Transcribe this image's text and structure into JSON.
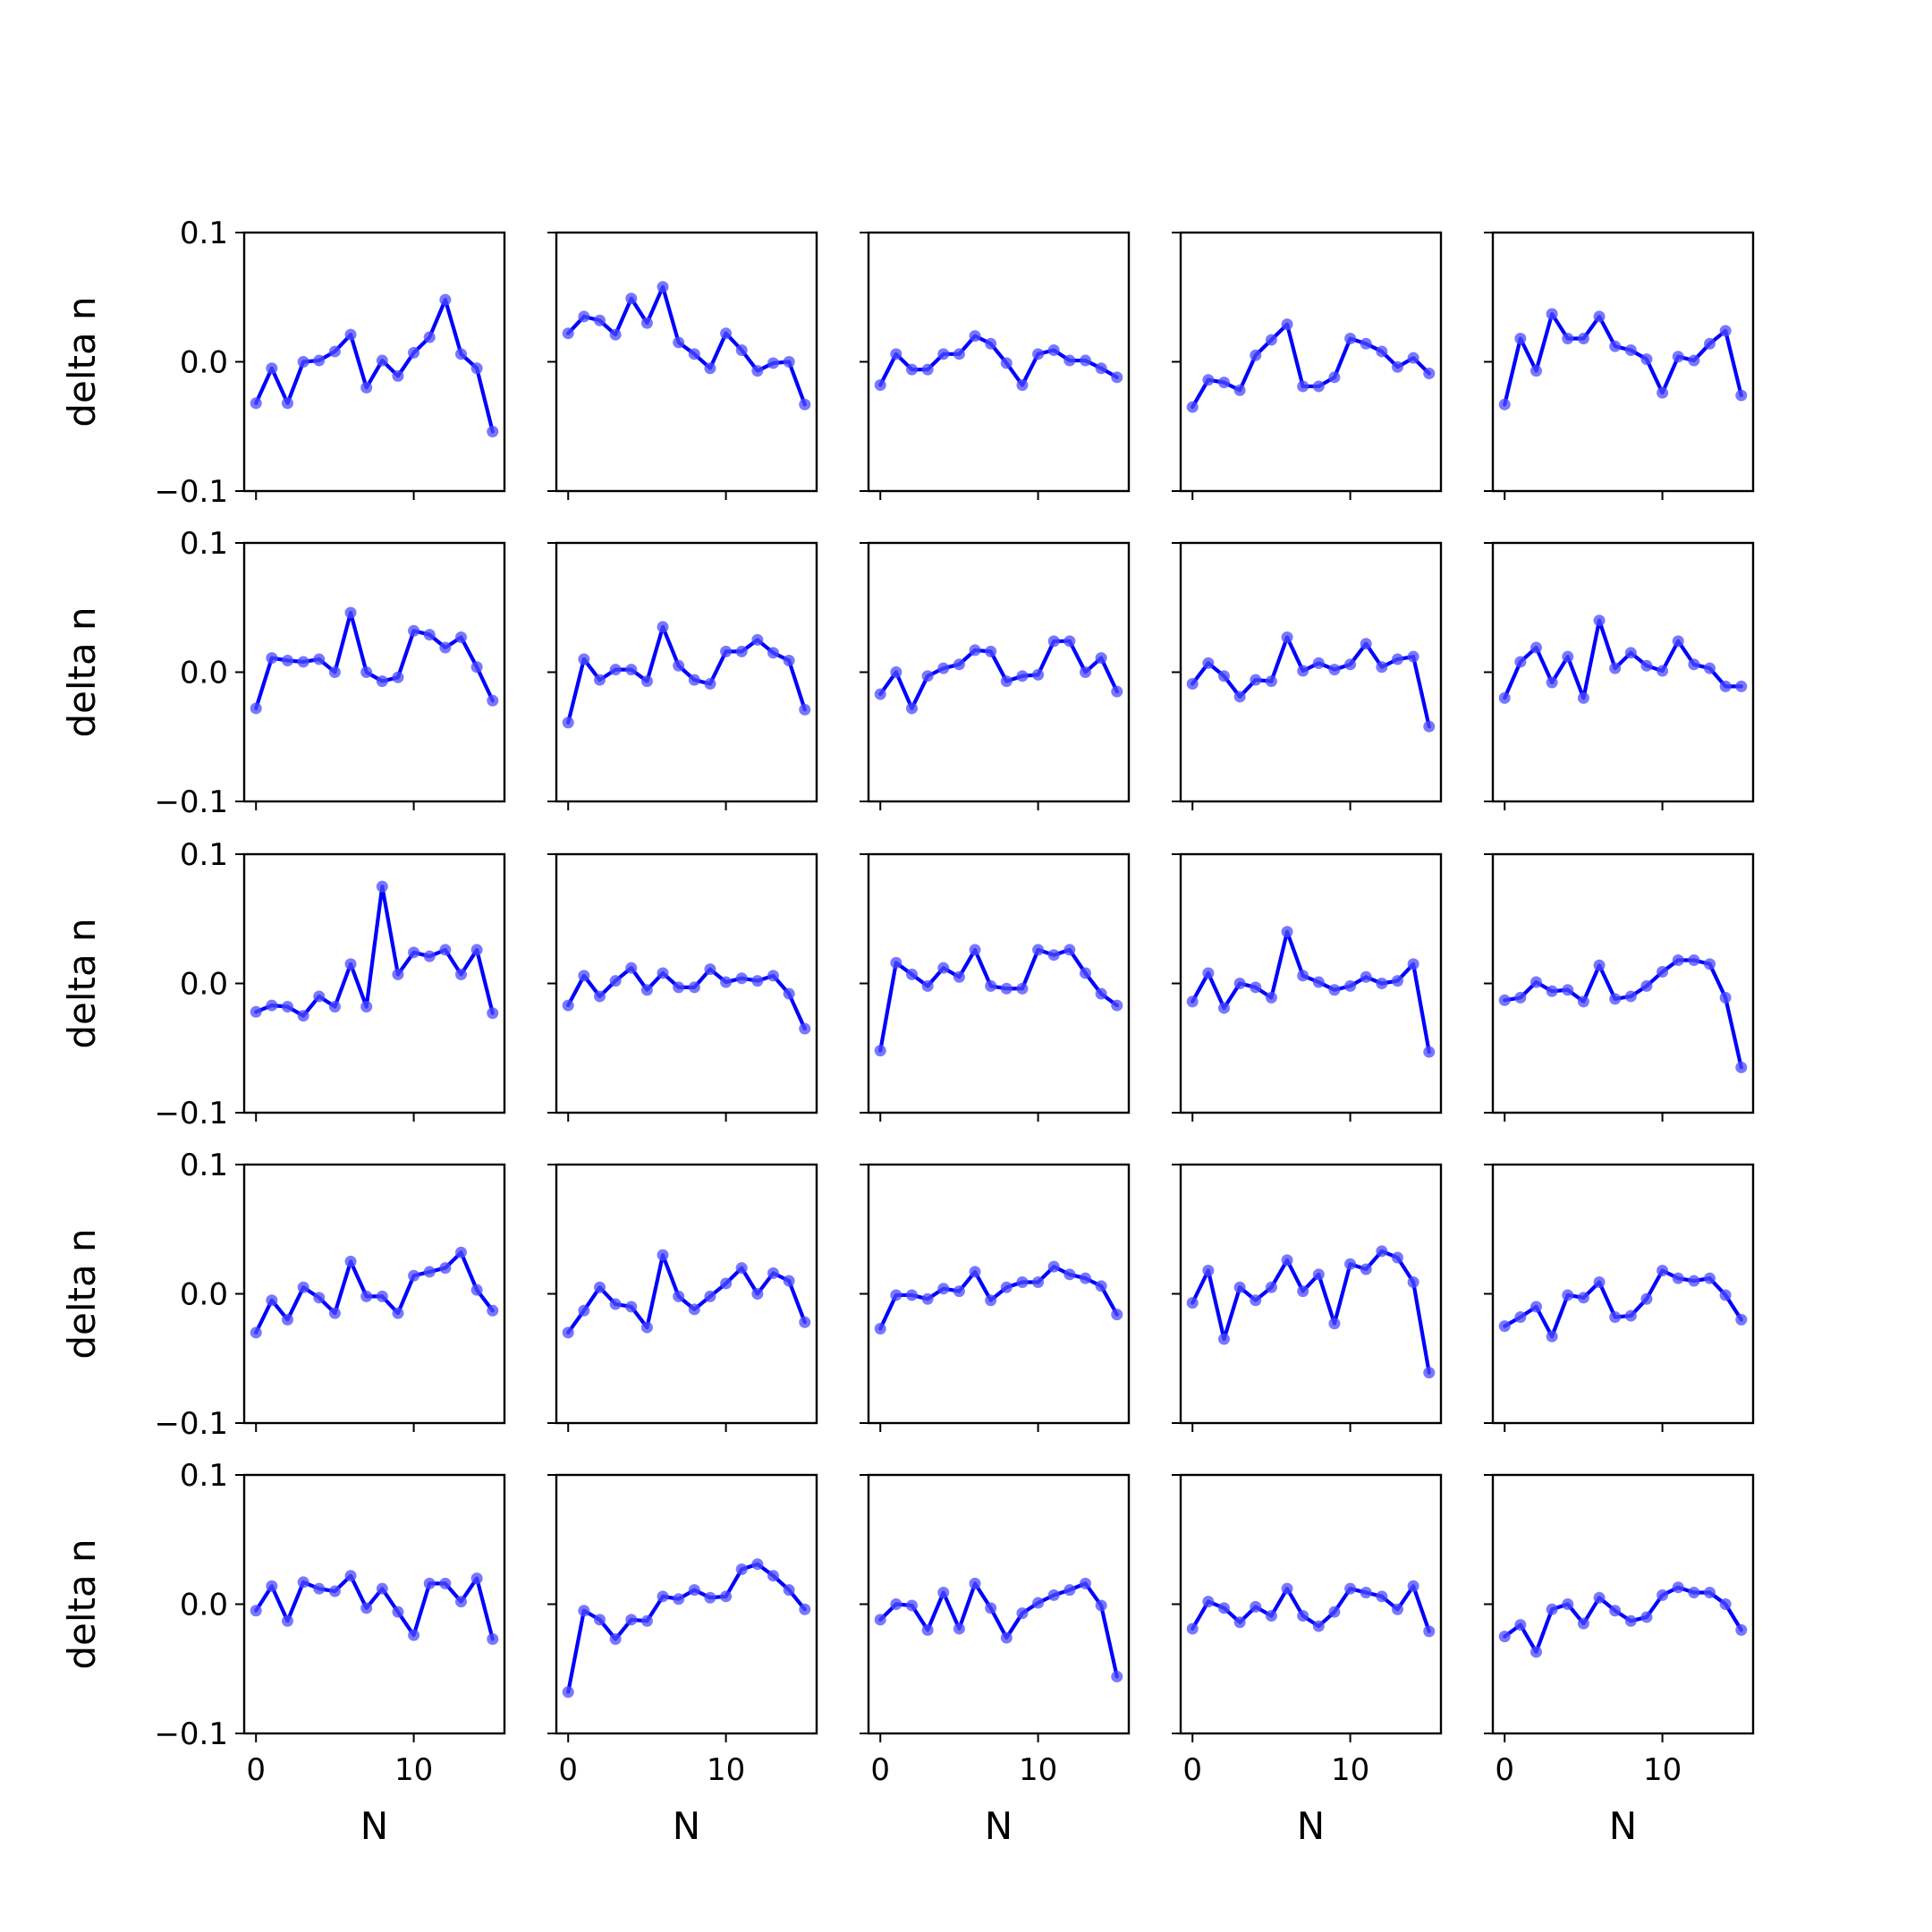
{
  "figure": {
    "rows": 5,
    "cols": 5,
    "x_axis_label": "N",
    "y_axis_label": "delta n",
    "x_ticks": [
      0,
      10
    ],
    "x_tick_labels": [
      "0",
      "10"
    ],
    "y_ticks": [
      -0.1,
      0.0,
      0.1
    ],
    "y_tick_labels": [
      "−0.1",
      "0.0",
      "0.1"
    ],
    "line_color": "#0000ff",
    "marker_color": "#4b4bff"
  },
  "chart_data": {
    "type": "line",
    "layout": "grid 5x5, shared y axis across columns",
    "x": [
      0,
      1,
      2,
      3,
      4,
      5,
      6,
      7,
      8,
      9,
      10,
      11,
      12,
      13,
      14,
      15
    ],
    "xlim": [
      -0.75,
      15.75
    ],
    "ylim": [
      -0.1,
      0.1
    ],
    "xlabel": "N",
    "ylabel": "delta n",
    "panels": [
      [
        -0.032,
        -0.005,
        -0.032,
        0.0,
        0.001,
        0.008,
        0.021,
        -0.02,
        0.001,
        -0.011,
        0.007,
        0.019,
        0.048,
        0.006,
        -0.005,
        -0.054
      ],
      [
        0.022,
        0.035,
        0.032,
        0.021,
        0.049,
        0.03,
        0.058,
        0.015,
        0.006,
        -0.005,
        0.022,
        0.009,
        -0.007,
        -0.001,
        0.0,
        -0.033
      ],
      [
        -0.018,
        0.006,
        -0.006,
        -0.006,
        0.006,
        0.006,
        0.02,
        0.014,
        -0.001,
        -0.018,
        0.006,
        0.009,
        0.001,
        0.001,
        -0.005,
        -0.012
      ],
      [
        -0.035,
        -0.014,
        -0.016,
        -0.022,
        0.005,
        0.017,
        0.029,
        -0.019,
        -0.019,
        -0.012,
        0.018,
        0.014,
        0.008,
        -0.004,
        0.003,
        -0.009
      ],
      [
        -0.033,
        0.018,
        -0.007,
        0.037,
        0.018,
        0.018,
        0.035,
        0.012,
        0.009,
        0.002,
        -0.024,
        0.004,
        0.001,
        0.014,
        0.024,
        -0.026
      ],
      [
        -0.028,
        0.011,
        0.009,
        0.008,
        0.01,
        0.0,
        0.046,
        0.0,
        -0.007,
        -0.004,
        0.032,
        0.029,
        0.019,
        0.027,
        0.004,
        -0.022
      ],
      [
        -0.039,
        0.01,
        -0.006,
        0.002,
        0.002,
        -0.007,
        0.035,
        0.005,
        -0.006,
        -0.009,
        0.016,
        0.016,
        0.025,
        0.015,
        0.009,
        -0.029
      ],
      [
        -0.017,
        0.0,
        -0.028,
        -0.003,
        0.003,
        0.006,
        0.017,
        0.016,
        -0.007,
        -0.003,
        -0.002,
        0.024,
        0.024,
        0.0,
        0.011,
        -0.015
      ],
      [
        -0.009,
        0.007,
        -0.003,
        -0.019,
        -0.006,
        -0.007,
        0.027,
        0.001,
        0.007,
        0.002,
        0.006,
        0.022,
        0.004,
        0.01,
        0.012,
        -0.042
      ],
      [
        -0.02,
        0.008,
        0.019,
        -0.008,
        0.012,
        -0.02,
        0.04,
        0.003,
        0.015,
        0.005,
        0.001,
        0.024,
        0.006,
        0.003,
        -0.011,
        -0.011
      ],
      [
        -0.022,
        -0.017,
        -0.018,
        -0.025,
        -0.01,
        -0.018,
        0.015,
        -0.018,
        0.075,
        0.007,
        0.024,
        0.021,
        0.026,
        0.007,
        0.026,
        -0.023
      ],
      [
        -0.017,
        0.006,
        -0.01,
        0.002,
        0.012,
        -0.005,
        0.008,
        -0.003,
        -0.003,
        0.011,
        0.001,
        0.004,
        0.002,
        0.006,
        -0.008,
        -0.035
      ],
      [
        -0.052,
        0.016,
        0.007,
        -0.002,
        0.012,
        0.005,
        0.026,
        -0.002,
        -0.004,
        -0.004,
        0.026,
        0.022,
        0.026,
        0.008,
        -0.008,
        -0.017
      ],
      [
        -0.014,
        0.008,
        -0.019,
        0.0,
        -0.003,
        -0.011,
        0.04,
        0.006,
        0.001,
        -0.005,
        -0.002,
        0.005,
        0.0,
        0.002,
        0.015,
        -0.053
      ],
      [
        -0.013,
        -0.011,
        0.001,
        -0.006,
        -0.005,
        -0.014,
        0.014,
        -0.012,
        -0.01,
        -0.002,
        0.009,
        0.018,
        0.018,
        0.015,
        -0.011,
        -0.065
      ],
      [
        -0.03,
        -0.005,
        -0.02,
        0.005,
        -0.003,
        -0.015,
        0.025,
        -0.002,
        -0.002,
        -0.015,
        0.014,
        0.017,
        0.02,
        0.032,
        0.003,
        -0.013
      ],
      [
        -0.03,
        -0.013,
        0.005,
        -0.008,
        -0.01,
        -0.026,
        0.03,
        -0.002,
        -0.012,
        -0.002,
        0.008,
        0.02,
        0.0,
        0.016,
        0.01,
        -0.022
      ],
      [
        -0.027,
        -0.001,
        -0.001,
        -0.004,
        0.004,
        0.002,
        0.017,
        -0.005,
        0.005,
        0.009,
        0.009,
        0.021,
        0.015,
        0.012,
        0.006,
        -0.016
      ],
      [
        -0.007,
        0.018,
        -0.035,
        0.005,
        -0.005,
        0.005,
        0.026,
        0.002,
        0.015,
        -0.023,
        0.023,
        0.019,
        0.033,
        0.028,
        0.009,
        -0.061
      ],
      [
        -0.025,
        -0.018,
        -0.01,
        -0.033,
        -0.001,
        -0.003,
        0.009,
        -0.018,
        -0.017,
        -0.004,
        0.018,
        0.012,
        0.01,
        0.012,
        -0.001,
        -0.02
      ],
      [
        -0.005,
        0.014,
        -0.013,
        0.017,
        0.012,
        0.01,
        0.022,
        -0.003,
        0.012,
        -0.006,
        -0.024,
        0.016,
        0.016,
        0.002,
        0.02,
        -0.027
      ],
      [
        -0.068,
        -0.005,
        -0.012,
        -0.027,
        -0.012,
        -0.013,
        0.006,
        0.004,
        0.011,
        0.005,
        0.006,
        0.027,
        0.031,
        0.022,
        0.011,
        -0.004
      ],
      [
        -0.012,
        0.0,
        -0.001,
        -0.02,
        0.009,
        -0.019,
        0.016,
        -0.003,
        -0.026,
        -0.007,
        0.001,
        0.007,
        0.011,
        0.016,
        -0.001,
        -0.056
      ],
      [
        -0.019,
        0.002,
        -0.003,
        -0.014,
        -0.002,
        -0.009,
        0.012,
        -0.009,
        -0.017,
        -0.006,
        0.012,
        0.009,
        0.006,
        -0.004,
        0.014,
        -0.021
      ],
      [
        -0.025,
        -0.016,
        -0.037,
        -0.004,
        0.0,
        -0.015,
        0.005,
        -0.005,
        -0.013,
        -0.01,
        0.007,
        0.013,
        0.009,
        0.009,
        0.0,
        -0.02
      ]
    ]
  }
}
